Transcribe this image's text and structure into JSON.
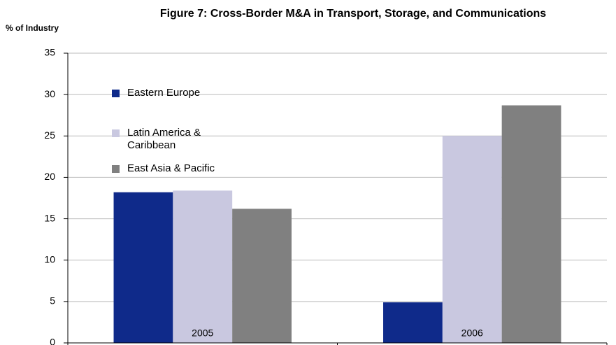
{
  "chart_data": {
    "type": "bar",
    "title": "Figure 7: Cross-Border M&A in Transport, Storage, and Communications",
    "y_label": "% of Industry",
    "categories": [
      "2005",
      "2006"
    ],
    "series": [
      {
        "name": "Eastern Europe",
        "color": "#0f2a8a",
        "values": [
          18.2,
          4.9
        ]
      },
      {
        "name": "Latin America & Caribbean",
        "color": "#c9c8e0",
        "values": [
          18.4,
          25.0
        ]
      },
      {
        "name": "East Asia & Pacific",
        "color": "#808080",
        "values": [
          16.2,
          28.7
        ]
      }
    ],
    "ylim": [
      0,
      35
    ],
    "yticks": [
      0,
      5,
      10,
      15,
      20,
      25,
      30,
      35
    ],
    "grid": true,
    "legend": "upper left"
  }
}
